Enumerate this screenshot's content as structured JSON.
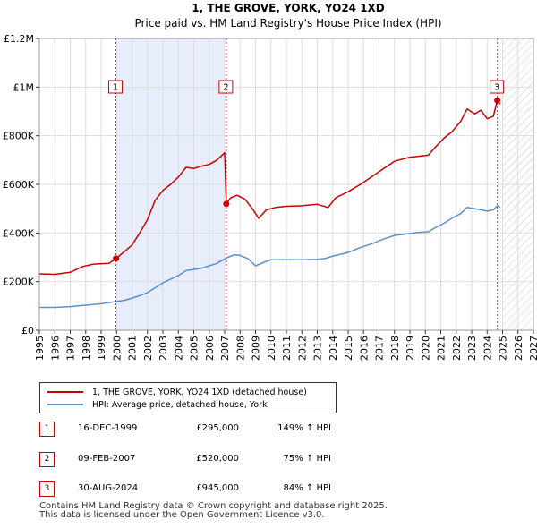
{
  "chart_data": {
    "type": "line",
    "title": "1, THE GROVE, YORK, YO24 1XD",
    "subtitle": "Price paid vs. HM Land Registry's House Price Index (HPI)",
    "xlabel": "",
    "ylabel": "",
    "xlim": [
      1995,
      2027
    ],
    "ylim": [
      0,
      1200000
    ],
    "x_ticks": [
      "1995",
      "1996",
      "1997",
      "1998",
      "1999",
      "2000",
      "2001",
      "2002",
      "2003",
      "2004",
      "2005",
      "2006",
      "2007",
      "2008",
      "2009",
      "2010",
      "2011",
      "2012",
      "2013",
      "2014",
      "2015",
      "2016",
      "2017",
      "2018",
      "2019",
      "2020",
      "2021",
      "2022",
      "2023",
      "2024",
      "2025",
      "2026",
      "2027"
    ],
    "y_ticks": [
      {
        "value": 0,
        "label": "£0"
      },
      {
        "value": 200000,
        "label": "£200K"
      },
      {
        "value": 400000,
        "label": "£400K"
      },
      {
        "value": 600000,
        "label": "£600K"
      },
      {
        "value": 800000,
        "label": "£800K"
      },
      {
        "value": 1000000,
        "label": "£1M"
      },
      {
        "value": 1200000,
        "label": "£1.2M"
      }
    ],
    "shaded_ranges": [
      [
        1999.96,
        2007.11
      ]
    ],
    "future_hatch_from": 2025.0,
    "series": [
      {
        "name": "1, THE GROVE, YORK, YO24 1XD (detached house)",
        "color": "#cc0000",
        "points": [
          [
            1995.0,
            232000
          ],
          [
            1996.0,
            230000
          ],
          [
            1997.0,
            238000
          ],
          [
            1997.8,
            262000
          ],
          [
            1998.5,
            272000
          ],
          [
            1999.5,
            275000
          ],
          [
            1999.96,
            295000
          ],
          [
            2001.0,
            350000
          ],
          [
            2001.5,
            400000
          ],
          [
            2002.0,
            455000
          ],
          [
            2002.5,
            535000
          ],
          [
            2003.0,
            575000
          ],
          [
            2003.5,
            600000
          ],
          [
            2004.0,
            630000
          ],
          [
            2004.5,
            670000
          ],
          [
            2005.0,
            665000
          ],
          [
            2005.5,
            675000
          ],
          [
            2006.0,
            682000
          ],
          [
            2006.5,
            700000
          ],
          [
            2007.0,
            730000
          ],
          [
            2007.11,
            520000
          ],
          [
            2007.4,
            545000
          ],
          [
            2007.8,
            555000
          ],
          [
            2008.3,
            540000
          ],
          [
            2008.8,
            500000
          ],
          [
            2009.2,
            460000
          ],
          [
            2009.7,
            495000
          ],
          [
            2010.3,
            505000
          ],
          [
            2011.0,
            510000
          ],
          [
            2012.0,
            512000
          ],
          [
            2013.0,
            518000
          ],
          [
            2013.7,
            505000
          ],
          [
            2014.2,
            545000
          ],
          [
            2015.0,
            570000
          ],
          [
            2015.8,
            600000
          ],
          [
            2016.5,
            630000
          ],
          [
            2017.3,
            665000
          ],
          [
            2018.0,
            695000
          ],
          [
            2019.0,
            712000
          ],
          [
            2019.5,
            715000
          ],
          [
            2020.2,
            720000
          ],
          [
            2020.6,
            750000
          ],
          [
            2021.2,
            790000
          ],
          [
            2021.7,
            815000
          ],
          [
            2022.3,
            860000
          ],
          [
            2022.7,
            910000
          ],
          [
            2023.2,
            890000
          ],
          [
            2023.6,
            905000
          ],
          [
            2024.0,
            870000
          ],
          [
            2024.4,
            880000
          ],
          [
            2024.66,
            945000
          ],
          [
            2024.85,
            930000
          ]
        ]
      },
      {
        "name": "HPI: Average price, detached house, York",
        "color": "#5b8fd0",
        "points": [
          [
            1995.0,
            94000
          ],
          [
            1996.0,
            94000
          ],
          [
            1997.0,
            97000
          ],
          [
            1998.0,
            103000
          ],
          [
            1999.0,
            109000
          ],
          [
            1999.96,
            118000
          ],
          [
            2000.5,
            123000
          ],
          [
            2001.0,
            132000
          ],
          [
            2001.5,
            142000
          ],
          [
            2002.0,
            155000
          ],
          [
            2002.5,
            175000
          ],
          [
            2003.0,
            195000
          ],
          [
            2003.5,
            210000
          ],
          [
            2004.0,
            225000
          ],
          [
            2004.5,
            245000
          ],
          [
            2005.0,
            250000
          ],
          [
            2005.5,
            255000
          ],
          [
            2006.0,
            265000
          ],
          [
            2006.5,
            275000
          ],
          [
            2007.11,
            297000
          ],
          [
            2007.6,
            310000
          ],
          [
            2008.0,
            308000
          ],
          [
            2008.5,
            295000
          ],
          [
            2009.0,
            265000
          ],
          [
            2009.5,
            278000
          ],
          [
            2010.0,
            290000
          ],
          [
            2011.0,
            290000
          ],
          [
            2012.0,
            290000
          ],
          [
            2013.0,
            292000
          ],
          [
            2013.5,
            295000
          ],
          [
            2014.0,
            305000
          ],
          [
            2015.0,
            320000
          ],
          [
            2015.8,
            340000
          ],
          [
            2016.5,
            355000
          ],
          [
            2017.3,
            375000
          ],
          [
            2018.0,
            390000
          ],
          [
            2019.0,
            398000
          ],
          [
            2019.5,
            402000
          ],
          [
            2020.2,
            405000
          ],
          [
            2020.6,
            420000
          ],
          [
            2021.2,
            440000
          ],
          [
            2021.7,
            460000
          ],
          [
            2022.3,
            480000
          ],
          [
            2022.7,
            505000
          ],
          [
            2023.2,
            500000
          ],
          [
            2023.6,
            495000
          ],
          [
            2024.0,
            490000
          ],
          [
            2024.4,
            495000
          ],
          [
            2024.66,
            512000
          ],
          [
            2024.85,
            505000
          ]
        ]
      }
    ],
    "sales": [
      {
        "num": "1",
        "date": "16-DEC-1999",
        "price": "£295,000",
        "hpi": "149% ↑ HPI",
        "x": 1999.96,
        "y": 295000
      },
      {
        "num": "2",
        "date": "09-FEB-2007",
        "price": "£520,000",
        "hpi": "75% ↑ HPI",
        "x": 2007.11,
        "y": 520000
      },
      {
        "num": "3",
        "date": "30-AUG-2024",
        "price": "£945,000",
        "hpi": "84% ↑ HPI",
        "x": 2024.66,
        "y": 945000
      }
    ],
    "legend": [
      {
        "label": "1, THE GROVE, YORK, YO24 1XD (detached house)",
        "color": "#cc0000"
      },
      {
        "label": "HPI: Average price, detached house, York",
        "color": "#5b8fd0"
      }
    ]
  },
  "footer": {
    "line1": "Contains HM Land Registry data © Crown copyright and database right 2025.",
    "line2": "This data is licensed under the Open Government Licence v3.0."
  }
}
